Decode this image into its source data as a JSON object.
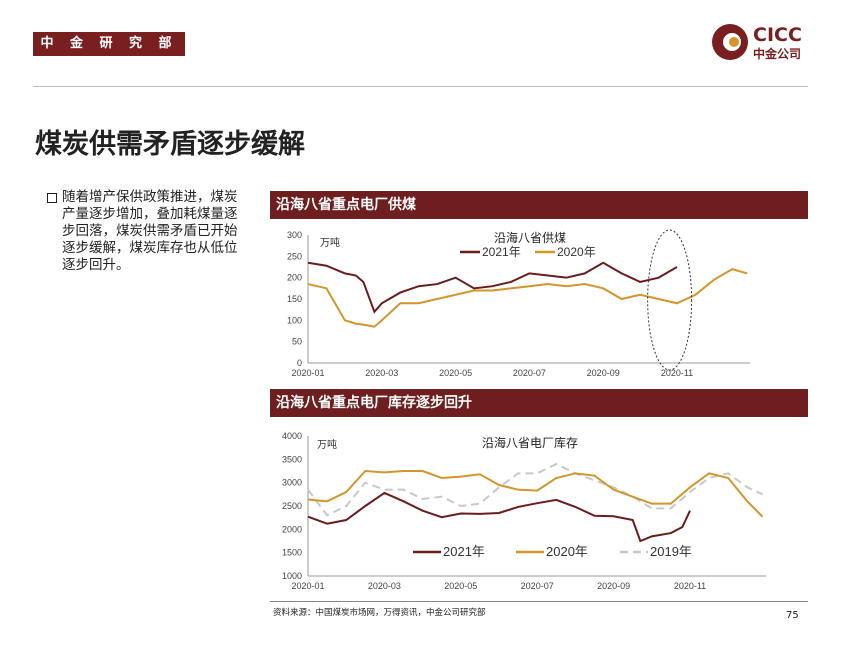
{
  "header": {
    "brand": "中 金 研 究 部",
    "logo_en": "CICC",
    "logo_cn": "中金公司"
  },
  "title": "煤炭供需矛盾逐步缓解",
  "bullet": "随着增产保供政策推进，煤炭产量逐步增加，叠加耗煤量逐步回落，煤炭供需矛盾已开始逐步缓解，煤炭库存也从低位逐步回升。",
  "panel1_title": "沿海八省重点电厂供煤",
  "panel2_title": "沿海八省重点电厂库存逐步回升",
  "footer": {
    "source": "资料来源：中国煤炭市场网，万得资讯，中金公司研究部",
    "page": "75"
  },
  "colors": {
    "c2021": "#6b1c1c",
    "c2020": "#d4952b",
    "c2019": "#c8c8c8",
    "bar": "#6e1e1e"
  },
  "chart_data": [
    {
      "type": "line",
      "title": "沿海八省供煤",
      "ylabel": "万吨",
      "ylim": [
        0,
        300
      ],
      "yticks": [
        "0",
        "50",
        "100",
        "150",
        "200",
        "250",
        "300"
      ],
      "xticks": [
        "2020-01",
        "2020-03",
        "2020-05",
        "2020-07",
        "2020-09",
        "2020-11"
      ],
      "legend": "top-center",
      "annotation": "dashed ellipse around Oct-Nov",
      "series": [
        {
          "name": "2021年",
          "color": "#6b1c1c",
          "x": [
            0,
            0.5,
            1,
            1.3,
            1.5,
            1.8,
            2,
            2.5,
            3,
            3.5,
            4,
            4.5,
            5,
            5.5,
            6,
            6.5,
            7,
            7.5,
            8,
            8.5,
            9,
            9.5,
            10
          ],
          "values": [
            235,
            228,
            210,
            205,
            190,
            120,
            140,
            165,
            180,
            185,
            200,
            175,
            180,
            190,
            210,
            205,
            200,
            210,
            235,
            210,
            190,
            200,
            225
          ]
        },
        {
          "name": "2020年",
          "color": "#d4952b",
          "x": [
            0,
            0.5,
            1,
            1.3,
            1.5,
            1.8,
            2,
            2.5,
            3,
            3.5,
            4,
            4.5,
            5,
            5.5,
            6,
            6.5,
            7,
            7.5,
            8,
            8.5,
            9,
            9.5,
            10,
            10.5,
            11,
            11.5,
            11.9
          ],
          "values": [
            185,
            175,
            100,
            92,
            90,
            85,
            100,
            140,
            140,
            150,
            160,
            170,
            170,
            175,
            180,
            185,
            180,
            185,
            175,
            150,
            160,
            150,
            140,
            160,
            195,
            220,
            210
          ]
        }
      ]
    },
    {
      "type": "line",
      "title": "沿海八省电厂库存",
      "ylabel": "万吨",
      "ylim": [
        1000,
        4000
      ],
      "yticks": [
        "1000",
        "1500",
        "2000",
        "2500",
        "3000",
        "3500",
        "4000"
      ],
      "xticks": [
        "2020-01",
        "2020-03",
        "2020-05",
        "2020-07",
        "2020-09",
        "2020-11"
      ],
      "legend": "bottom-center",
      "series": [
        {
          "name": "2021年",
          "color": "#6b1c1c",
          "x": [
            0,
            0.5,
            1,
            1.5,
            2,
            2.5,
            3,
            3.5,
            4,
            4.5,
            5,
            5.5,
            6,
            6.5,
            7,
            7.5,
            8,
            8.5,
            8.7,
            9,
            9.5,
            9.8,
            10
          ],
          "values": [
            2270,
            2120,
            2200,
            2500,
            2780,
            2600,
            2400,
            2260,
            2340,
            2330,
            2350,
            2480,
            2560,
            2630,
            2480,
            2290,
            2280,
            2200,
            1750,
            1850,
            1920,
            2050,
            2400
          ]
        },
        {
          "name": "2020年",
          "color": "#d4952b",
          "x": [
            0,
            0.5,
            1,
            1.5,
            2,
            2.5,
            3,
            3.5,
            4,
            4.5,
            5,
            5.5,
            6,
            6.5,
            7,
            7.5,
            8,
            8.5,
            9,
            9.5,
            10,
            10.5,
            11,
            11.5,
            11.9
          ],
          "values": [
            2640,
            2600,
            2800,
            3250,
            3220,
            3250,
            3250,
            3100,
            3130,
            3180,
            2950,
            2850,
            2830,
            3100,
            3200,
            3150,
            2850,
            2700,
            2550,
            2550,
            2900,
            3200,
            3100,
            2600,
            2270
          ]
        },
        {
          "name": "2019年",
          "color": "#c8c8c8",
          "dashed": true,
          "x": [
            0,
            0.5,
            1,
            1.5,
            2,
            2.5,
            3,
            3.5,
            4,
            4.5,
            5,
            5.5,
            6,
            6.5,
            7,
            7.5,
            8,
            8.5,
            9,
            9.5,
            10,
            10.5,
            11,
            11.5,
            11.9
          ],
          "values": [
            2850,
            2300,
            2500,
            3000,
            2850,
            2850,
            2650,
            2700,
            2500,
            2550,
            2900,
            3200,
            3200,
            3400,
            3200,
            3050,
            2900,
            2700,
            2450,
            2450,
            2800,
            3100,
            3200,
            2900,
            2750
          ]
        }
      ]
    }
  ]
}
